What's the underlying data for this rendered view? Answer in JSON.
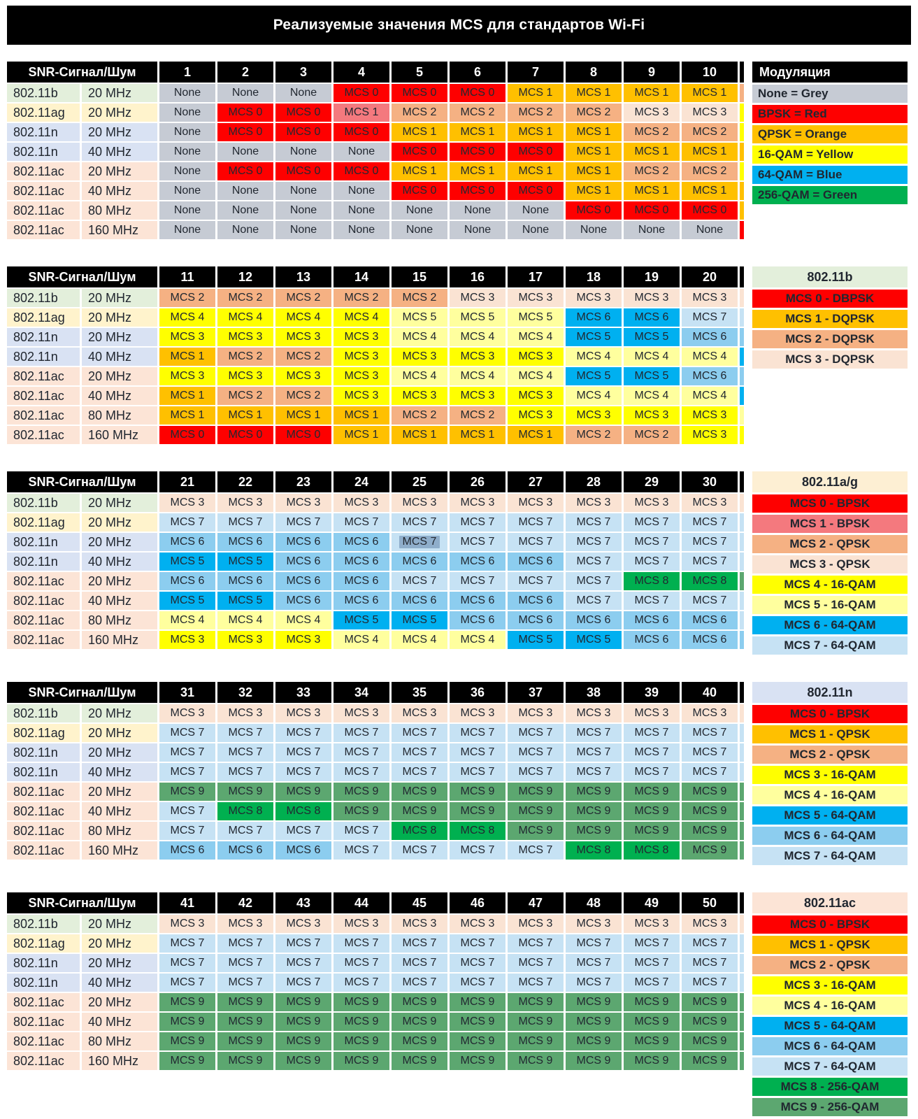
{
  "title": "Реализуемые значения MCS для стандартов Wi-Fi",
  "snr_header": "SNR-Сигнал/Шум",
  "palette": {
    "grey": "#C6CBD4",
    "red": "#FE0000",
    "pink": "#F4797E",
    "orange": "#FFC000",
    "peach": "#F5B183",
    "lightpeach": "#FAE3D3",
    "yellow": "#FFFF00",
    "lightyellow": "#FFFF9E",
    "blue": "#00B0F0",
    "midblue": "#8CCDEF",
    "lightblue": "#C6E2F4",
    "green": "#00B050",
    "seagreen": "#5CA770",
    "label_b": "#E3EFDB",
    "label_ag": "#FFF3CC",
    "label_n": "#D9E2F3",
    "label_ac": "#FCE4D6",
    "legend_ag_header": "#FDEFD3",
    "cell_text": "#212730",
    "selection": "#8FAECB"
  },
  "rows": [
    {
      "standard": "802.11b",
      "bandwidth": "20 MHz",
      "key": "b",
      "label_bg": "label_b"
    },
    {
      "standard": "802.11ag",
      "bandwidth": "20 MHz",
      "key": "ag",
      "label_bg": "label_ag"
    },
    {
      "standard": "802.11n",
      "bandwidth": "20 MHz",
      "key": "n",
      "label_bg": "label_n"
    },
    {
      "standard": "802.11n",
      "bandwidth": "40 MHz",
      "key": "n",
      "label_bg": "label_n"
    },
    {
      "standard": "802.11ac",
      "bandwidth": "20 MHz",
      "key": "ac",
      "label_bg": "label_ac"
    },
    {
      "standard": "802.11ac",
      "bandwidth": "40 MHz",
      "key": "ac",
      "label_bg": "label_ac"
    },
    {
      "standard": "802.11ac",
      "bandwidth": "80 MHz",
      "key": "ac",
      "label_bg": "label_ac"
    },
    {
      "standard": "802.11ac",
      "bandwidth": "160 MHz",
      "key": "ac",
      "label_bg": "label_ac"
    }
  ],
  "mcs_colormap": {
    "b": {
      "0": "red",
      "1": "orange",
      "2": "peach",
      "3": "lightpeach"
    },
    "ag": {
      "0": "red",
      "1": "pink",
      "2": "peach",
      "3": "lightpeach",
      "4": "yellow",
      "5": "lightyellow",
      "6": "blue",
      "7": "lightblue"
    },
    "n": {
      "0": "red",
      "1": "orange",
      "2": "peach",
      "3": "yellow",
      "4": "lightyellow",
      "5": "blue",
      "6": "midblue",
      "7": "lightblue"
    },
    "ac": {
      "0": "red",
      "1": "orange",
      "2": "peach",
      "3": "yellow",
      "4": "lightyellow",
      "5": "blue",
      "6": "midblue",
      "7": "lightblue",
      "8": "green",
      "9": "seagreen"
    }
  },
  "none_label": "None",
  "mcs_prefix": "MCS ",
  "selected_cell": {
    "block_index": 2,
    "row_index": 2,
    "col_index": 4
  },
  "blocks": [
    {
      "cols": [
        1,
        2,
        3,
        4,
        5,
        6,
        7,
        8,
        9,
        10
      ],
      "values": [
        [
          "None",
          "None",
          "None",
          0,
          0,
          0,
          1,
          1,
          1,
          1
        ],
        [
          "None",
          0,
          0,
          1,
          2,
          2,
          2,
          2,
          3,
          3
        ],
        [
          "None",
          0,
          0,
          0,
          1,
          1,
          1,
          1,
          2,
          2
        ],
        [
          "None",
          "None",
          "None",
          "None",
          0,
          0,
          0,
          1,
          1,
          1
        ],
        [
          "None",
          0,
          0,
          0,
          1,
          1,
          1,
          1,
          2,
          2
        ],
        [
          "None",
          "None",
          "None",
          "None",
          0,
          0,
          0,
          1,
          1,
          1
        ],
        [
          "None",
          "None",
          "None",
          "None",
          "None",
          "None",
          "None",
          0,
          0,
          0
        ],
        [
          "None",
          "None",
          "None",
          "None",
          "None",
          "None",
          "None",
          "None",
          "None",
          "None"
        ]
      ],
      "legend": {
        "title": "Модуляция",
        "style": "dark",
        "align": "left",
        "items": [
          {
            "label": "None = Grey",
            "color": "grey"
          },
          {
            "label": "BPSK = Red",
            "color": "red"
          },
          {
            "label": "QPSK = Orange",
            "color": "orange"
          },
          {
            "label": "16-QAM = Yellow",
            "color": "yellow"
          },
          {
            "label": "64-QAM = Blue",
            "color": "blue"
          },
          {
            "label": "256-QAM = Green",
            "color": "green"
          }
        ]
      }
    },
    {
      "cols": [
        11,
        12,
        13,
        14,
        15,
        16,
        17,
        18,
        19,
        20
      ],
      "values": [
        [
          2,
          2,
          2,
          2,
          2,
          3,
          3,
          3,
          3,
          3
        ],
        [
          4,
          4,
          4,
          4,
          5,
          5,
          5,
          6,
          6,
          7
        ],
        [
          3,
          3,
          3,
          3,
          4,
          4,
          4,
          5,
          5,
          6
        ],
        [
          1,
          2,
          2,
          3,
          3,
          3,
          3,
          4,
          4,
          4
        ],
        [
          3,
          3,
          3,
          3,
          4,
          4,
          4,
          5,
          5,
          6
        ],
        [
          1,
          2,
          2,
          3,
          3,
          3,
          3,
          4,
          4,
          4
        ],
        [
          1,
          1,
          1,
          1,
          2,
          2,
          3,
          3,
          3,
          3
        ],
        [
          0,
          0,
          0,
          1,
          1,
          1,
          1,
          2,
          2,
          3
        ]
      ],
      "legend": {
        "title": "802.11b",
        "title_bg": "label_b",
        "align": "center",
        "items": [
          {
            "label": "MCS 0 - DBPSK",
            "color": "red"
          },
          {
            "label": "MCS 1 - DQPSK",
            "color": "orange"
          },
          {
            "label": "MCS 2 - DQPSK",
            "color": "peach"
          },
          {
            "label": "MCS 3 - DQPSK",
            "color": "lightpeach"
          }
        ]
      }
    },
    {
      "cols": [
        21,
        22,
        23,
        24,
        25,
        26,
        27,
        28,
        29,
        30
      ],
      "values": [
        [
          3,
          3,
          3,
          3,
          3,
          3,
          3,
          3,
          3,
          3
        ],
        [
          7,
          7,
          7,
          7,
          7,
          7,
          7,
          7,
          7,
          7
        ],
        [
          6,
          6,
          6,
          6,
          7,
          7,
          7,
          7,
          7,
          7
        ],
        [
          5,
          5,
          6,
          6,
          6,
          6,
          6,
          7,
          7,
          7
        ],
        [
          6,
          6,
          6,
          6,
          7,
          7,
          7,
          7,
          8,
          8
        ],
        [
          5,
          5,
          6,
          6,
          6,
          6,
          6,
          7,
          7,
          7
        ],
        [
          4,
          4,
          4,
          5,
          5,
          6,
          6,
          6,
          6,
          6
        ],
        [
          3,
          3,
          3,
          4,
          4,
          4,
          5,
          5,
          6,
          6
        ]
      ],
      "legend": {
        "title": "802.11a/g",
        "title_bg": "legend_ag_header",
        "align": "center",
        "items": [
          {
            "label": "MCS 0 - BPSK",
            "color": "red"
          },
          {
            "label": "MCS 1 - BPSK",
            "color": "pink"
          },
          {
            "label": "MCS 2 - QPSK",
            "color": "peach"
          },
          {
            "label": "MCS 3 - QPSK",
            "color": "lightpeach"
          },
          {
            "label": "MCS 4 - 16-QAM",
            "color": "yellow"
          },
          {
            "label": "MCS 5 - 16-QAM",
            "color": "lightyellow"
          },
          {
            "label": "MCS 6 - 64-QAM",
            "color": "blue"
          },
          {
            "label": "MCS 7 - 64-QAM",
            "color": "lightblue"
          }
        ]
      }
    },
    {
      "cols": [
        31,
        32,
        33,
        34,
        35,
        36,
        37,
        38,
        39,
        40
      ],
      "values": [
        [
          3,
          3,
          3,
          3,
          3,
          3,
          3,
          3,
          3,
          3
        ],
        [
          7,
          7,
          7,
          7,
          7,
          7,
          7,
          7,
          7,
          7
        ],
        [
          7,
          7,
          7,
          7,
          7,
          7,
          7,
          7,
          7,
          7
        ],
        [
          7,
          7,
          7,
          7,
          7,
          7,
          7,
          7,
          7,
          7
        ],
        [
          9,
          9,
          9,
          9,
          9,
          9,
          9,
          9,
          9,
          9
        ],
        [
          7,
          8,
          8,
          9,
          9,
          9,
          9,
          9,
          9,
          9
        ],
        [
          7,
          7,
          7,
          7,
          8,
          8,
          9,
          9,
          9,
          9
        ],
        [
          6,
          6,
          6,
          7,
          7,
          7,
          7,
          8,
          8,
          9
        ]
      ],
      "legend": {
        "title": "802.11n",
        "title_bg": "label_n",
        "align": "center",
        "items": [
          {
            "label": "MCS 0 - BPSK",
            "color": "red"
          },
          {
            "label": "MCS 1 - QPSK",
            "color": "orange"
          },
          {
            "label": "MCS 2 - QPSK",
            "color": "peach"
          },
          {
            "label": "MCS 3 - 16-QAM",
            "color": "yellow"
          },
          {
            "label": "MCS 4 - 16-QAM",
            "color": "lightyellow"
          },
          {
            "label": "MCS 5 - 64-QAM",
            "color": "blue"
          },
          {
            "label": "MCS 6 - 64-QAM",
            "color": "midblue"
          },
          {
            "label": "MCS 7 - 64-QAM",
            "color": "lightblue"
          }
        ]
      }
    },
    {
      "cols": [
        41,
        42,
        43,
        44,
        45,
        46,
        47,
        48,
        49,
        50
      ],
      "values": [
        [
          3,
          3,
          3,
          3,
          3,
          3,
          3,
          3,
          3,
          3
        ],
        [
          7,
          7,
          7,
          7,
          7,
          7,
          7,
          7,
          7,
          7
        ],
        [
          7,
          7,
          7,
          7,
          7,
          7,
          7,
          7,
          7,
          7
        ],
        [
          7,
          7,
          7,
          7,
          7,
          7,
          7,
          7,
          7,
          7
        ],
        [
          9,
          9,
          9,
          9,
          9,
          9,
          9,
          9,
          9,
          9
        ],
        [
          9,
          9,
          9,
          9,
          9,
          9,
          9,
          9,
          9,
          9
        ],
        [
          9,
          9,
          9,
          9,
          9,
          9,
          9,
          9,
          9,
          9
        ],
        [
          9,
          9,
          9,
          9,
          9,
          9,
          9,
          9,
          9,
          9
        ]
      ],
      "legend": {
        "title": "802.11ac",
        "title_bg": "label_ac",
        "align": "center",
        "items": [
          {
            "label": "MCS 0 - BPSK",
            "color": "red"
          },
          {
            "label": "MCS 1 - QPSK",
            "color": "orange"
          },
          {
            "label": "MCS 2 - QPSK",
            "color": "peach"
          },
          {
            "label": "MCS 3 - 16-QAM",
            "color": "yellow"
          },
          {
            "label": "MCS 4 - 16-QAM",
            "color": "lightyellow"
          },
          {
            "label": "MCS 5 - 64-QAM",
            "color": "blue"
          },
          {
            "label": "MCS 6 - 64-QAM",
            "color": "midblue"
          },
          {
            "label": "MCS 7 - 64-QAM",
            "color": "lightblue"
          },
          {
            "label": "MCS 8 - 256-QAM",
            "color": "green"
          },
          {
            "label": "MCS 9 - 256-QAM",
            "color": "seagreen"
          }
        ]
      }
    }
  ]
}
